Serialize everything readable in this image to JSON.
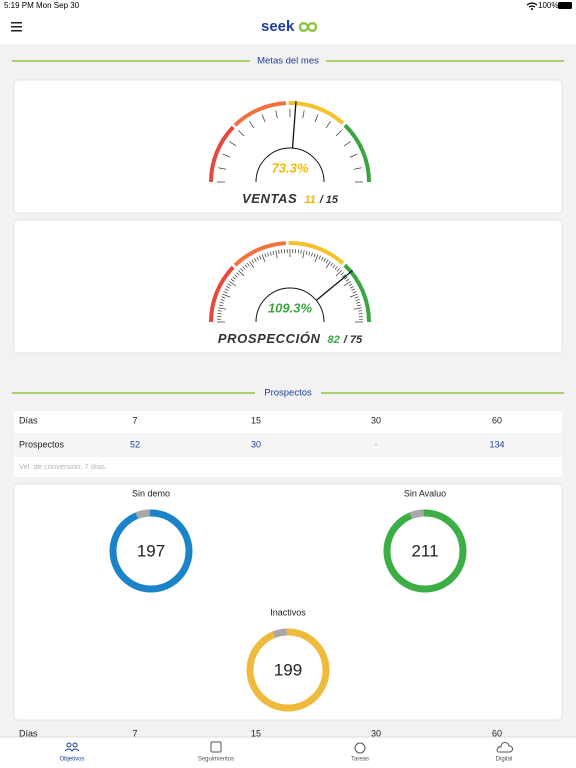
{
  "status_bar": {
    "time": "5:19 PM",
    "date": "Mon Sep 30",
    "battery": "100%"
  },
  "header": {
    "logo": "seek"
  },
  "goals": {
    "title": "Metas del mes",
    "gauges": [
      {
        "percent": 73.3,
        "percent_label": "73.3%",
        "name": "VENTAS",
        "current": "11",
        "separator": "/",
        "target": "15",
        "color": "#f2b705"
      },
      {
        "percent": 109.3,
        "percent_label": "109.3%",
        "name": "PROSPECCIÓN",
        "current": "82",
        "separator": "/",
        "target": "75",
        "color": "#3aa63f"
      }
    ]
  },
  "prospects": {
    "title": "Prospectos",
    "table": {
      "rows": [
        [
          "Días",
          "7",
          "15",
          "30",
          "60"
        ],
        [
          "Prospectos",
          "52",
          "30",
          "-",
          "134"
        ]
      ],
      "note": "Vel. de conversion: 7 días."
    },
    "donuts": [
      {
        "label": "Sin demo",
        "value": "197",
        "color": "#1b84c9"
      },
      {
        "label": "Sin Avaluo",
        "value": "211",
        "color": "#3cae45"
      },
      {
        "label": "Inactivos",
        "value": "199",
        "color": "#f0ba3c"
      }
    ],
    "extra_row": [
      "Días",
      "7",
      "15",
      "30",
      "60"
    ]
  },
  "tabs": [
    {
      "label": "Objetivos",
      "active": true
    },
    {
      "label": "Seguimientos",
      "active": false
    },
    {
      "label": "Tareas",
      "active": false
    },
    {
      "label": "Digital",
      "active": false
    }
  ]
}
